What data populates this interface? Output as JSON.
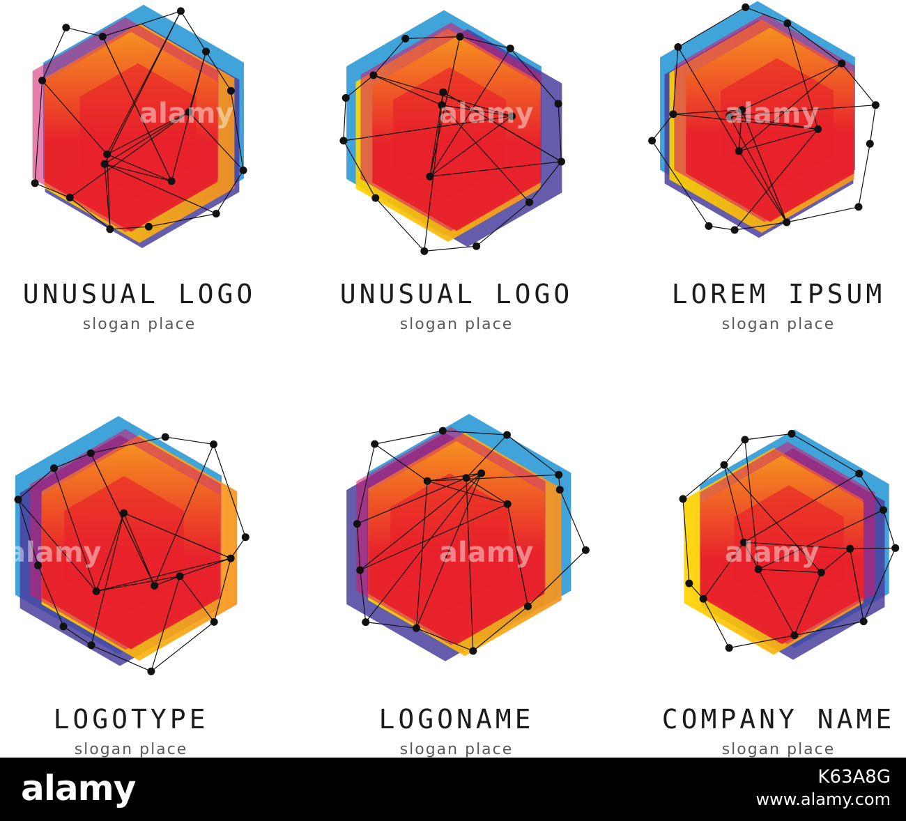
{
  "logos": [
    {
      "title": "UNUSUAL LOGO",
      "slogan": "slogan place"
    },
    {
      "title": "UNUSUAL LOGO",
      "slogan": "slogan place"
    },
    {
      "title": "LOREM IPSUM",
      "slogan": "slogan place"
    },
    {
      "title": "LOGOTYPE",
      "slogan": "slogan place"
    },
    {
      "title": "LOGONAME",
      "slogan": "slogan place"
    },
    {
      "title": "COMPANY NAME",
      "slogan": "slogan place"
    }
  ],
  "watermark": {
    "brand": "alamy",
    "image_id": "K63A8G",
    "site": "www.alamy.com"
  },
  "palette": {
    "red": "#e8202a",
    "orange": "#f7931e",
    "yellow": "#ffd400",
    "blue": "#2b9ad6",
    "purple": "#4a3f9e",
    "magenta": "#d4156b",
    "network": "#111111"
  }
}
